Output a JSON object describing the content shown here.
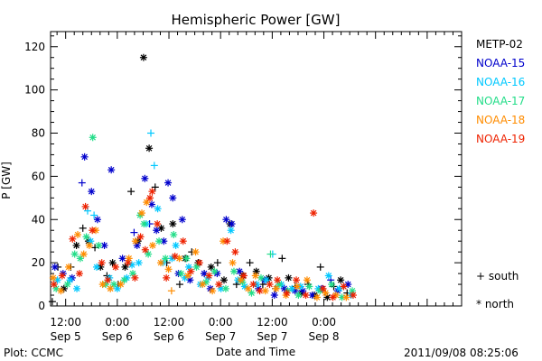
{
  "chart_data": {
    "type": "scatter",
    "title": "Hemispheric Power [GW]",
    "ylabel": "P [GW]",
    "xlabel": "Date and Time",
    "x_unit": "hours since 2011-09-05 00:00 UT",
    "xlim": [
      8.5,
      104
    ],
    "ylim": [
      0,
      127
    ],
    "yticks": [
      0,
      20,
      40,
      60,
      80,
      100,
      120
    ],
    "xticks": [
      {
        "x": 12,
        "time": "12:00",
        "date": "Sep 5"
      },
      {
        "x": 24,
        "time": "0:00",
        "date": "Sep 6"
      },
      {
        "x": 36,
        "time": "12:00",
        "date": "Sep 6"
      },
      {
        "x": 48,
        "time": "0:00",
        "date": "Sep 7"
      },
      {
        "x": 60,
        "time": "12:00",
        "date": "Sep 7"
      },
      {
        "x": 72,
        "time": "0:00",
        "date": "Sep 8"
      }
    ],
    "grid": false,
    "legend_position": "right",
    "marker_key": {
      "south": "+",
      "north": "*"
    },
    "series": [
      {
        "name": "METP-02",
        "color": "#000000",
        "points": [
          [
            8.9,
            2,
            "+"
          ],
          [
            10.2,
            18,
            "+"
          ],
          [
            11.6,
            8,
            "*"
          ],
          [
            13.2,
            18,
            "+"
          ],
          [
            14.5,
            28,
            "*"
          ],
          [
            16,
            36,
            "+"
          ],
          [
            17.3,
            30,
            "*"
          ],
          [
            18.8,
            27,
            "+"
          ],
          [
            20.1,
            18,
            "*"
          ],
          [
            21.6,
            14,
            "+"
          ],
          [
            22.9,
            20,
            "*"
          ],
          [
            24.2,
            10,
            "+"
          ],
          [
            25.8,
            18,
            "*"
          ],
          [
            27.2,
            53,
            "+"
          ],
          [
            28.8,
            30,
            "*"
          ],
          [
            30.1,
            115,
            "*"
          ],
          [
            31.4,
            73,
            "*"
          ],
          [
            32.8,
            55,
            "+"
          ],
          [
            34.2,
            36,
            "*"
          ],
          [
            35.5,
            20,
            "+"
          ],
          [
            36.9,
            38,
            "*"
          ],
          [
            38.5,
            10,
            "+"
          ],
          [
            39.8,
            22,
            "*"
          ],
          [
            41.3,
            25,
            "+"
          ],
          [
            42.8,
            20,
            "*"
          ],
          [
            44.2,
            15,
            "+"
          ],
          [
            45.8,
            18,
            "*"
          ],
          [
            47.3,
            20,
            "+"
          ],
          [
            48.8,
            12,
            "*"
          ],
          [
            50.2,
            38,
            "*"
          ],
          [
            51.7,
            10,
            "+"
          ],
          [
            53.2,
            14,
            "*"
          ],
          [
            54.8,
            20,
            "+"
          ],
          [
            56.3,
            16,
            "*"
          ],
          [
            57.8,
            10,
            "+"
          ],
          [
            59.2,
            13,
            "*"
          ],
          [
            60.8,
            8,
            "+"
          ],
          [
            62.3,
            22,
            "+"
          ],
          [
            63.8,
            13,
            "*"
          ],
          [
            65.3,
            9,
            "+"
          ],
          [
            66.8,
            6,
            "*"
          ],
          [
            68.3,
            10,
            "+"
          ],
          [
            69.8,
            5,
            "*"
          ],
          [
            71.2,
            18,
            "+"
          ],
          [
            72.8,
            4,
            "*"
          ],
          [
            74.3,
            9,
            "+"
          ],
          [
            75.9,
            12,
            "*"
          ],
          [
            77.4,
            6,
            "+"
          ]
        ]
      },
      {
        "name": "NOAA-15",
        "color": "#0000cc",
        "points": [
          [
            9.5,
            18,
            "*"
          ],
          [
            11.4,
            15,
            "*"
          ],
          [
            13.5,
            13,
            "*"
          ],
          [
            15.8,
            57,
            "+"
          ],
          [
            16.4,
            69,
            "*"
          ],
          [
            18,
            53,
            "*"
          ],
          [
            19.4,
            40,
            "*"
          ],
          [
            21,
            28,
            "*"
          ],
          [
            22.6,
            63,
            "*"
          ],
          [
            25.2,
            22,
            "*"
          ],
          [
            27.9,
            34,
            "+"
          ],
          [
            28.6,
            28,
            "*"
          ],
          [
            30.4,
            59,
            "*"
          ],
          [
            31.5,
            38,
            "+"
          ],
          [
            32,
            47,
            "*"
          ],
          [
            33.1,
            35,
            "*"
          ],
          [
            34.8,
            30,
            "*"
          ],
          [
            35.8,
            57,
            "*"
          ],
          [
            36.9,
            50,
            "*"
          ],
          [
            38.2,
            15,
            "*"
          ],
          [
            39.1,
            40,
            "*"
          ],
          [
            40.9,
            12,
            "*"
          ],
          [
            44.2,
            15,
            "*"
          ],
          [
            45.6,
            8,
            "*"
          ],
          [
            47.2,
            15,
            "*"
          ],
          [
            49.3,
            40,
            "*"
          ],
          [
            50.6,
            38,
            "*"
          ],
          [
            52.4,
            16,
            "*"
          ],
          [
            56.8,
            8,
            "*"
          ],
          [
            58.2,
            12,
            "*"
          ],
          [
            60.5,
            5,
            "*"
          ],
          [
            62.8,
            8,
            "*"
          ],
          [
            65.3,
            7,
            "*"
          ],
          [
            67.1,
            7,
            "*"
          ],
          [
            69.3,
            5,
            "*"
          ],
          [
            71.5,
            8,
            "*"
          ],
          [
            73.6,
            12,
            "+"
          ],
          [
            75.2,
            7,
            "*"
          ],
          [
            77.6,
            10,
            "*"
          ]
        ]
      },
      {
        "name": "NOAA-16",
        "color": "#00c8ff",
        "points": [
          [
            10.1,
            12,
            "*"
          ],
          [
            13,
            12,
            "*"
          ],
          [
            14.6,
            8,
            "*"
          ],
          [
            17.1,
            44,
            "+"
          ],
          [
            17.8,
            30,
            "*"
          ],
          [
            18.6,
            42,
            "+"
          ],
          [
            19.2,
            18,
            "*"
          ],
          [
            22.2,
            13,
            "*"
          ],
          [
            24,
            8,
            "*"
          ],
          [
            26.2,
            13,
            "*"
          ],
          [
            27.4,
            19,
            "*"
          ],
          [
            29,
            20,
            "*"
          ],
          [
            30.7,
            38,
            "*"
          ],
          [
            31.8,
            80,
            "+"
          ],
          [
            32.6,
            65,
            "+"
          ],
          [
            33.4,
            45,
            "*"
          ],
          [
            34.6,
            20,
            "*"
          ],
          [
            36.7,
            22,
            "*"
          ],
          [
            37.6,
            28,
            "*"
          ],
          [
            39.7,
            13,
            "*"
          ],
          [
            40.6,
            18,
            "*"
          ],
          [
            43.3,
            10,
            "*"
          ],
          [
            45.1,
            13,
            "*"
          ],
          [
            48.1,
            8,
            "*"
          ],
          [
            50.4,
            35,
            "*"
          ],
          [
            52,
            12,
            "*"
          ],
          [
            53.6,
            9,
            "*"
          ],
          [
            56.4,
            10,
            "*"
          ],
          [
            58.6,
            12,
            "*"
          ],
          [
            60.1,
            24,
            "+"
          ],
          [
            62.1,
            10,
            "*"
          ],
          [
            64.6,
            8,
            "*"
          ],
          [
            66.6,
            9,
            "*"
          ],
          [
            70.7,
            8,
            "*"
          ],
          [
            73.1,
            14,
            "*"
          ],
          [
            75.6,
            8,
            "*"
          ],
          [
            78.3,
            5,
            "*"
          ]
        ]
      },
      {
        "name": "NOAA-17",
        "color": "#22dd88",
        "points": [
          [
            9.8,
            8,
            "*"
          ],
          [
            12.4,
            10,
            "*"
          ],
          [
            14.1,
            24,
            "*"
          ],
          [
            15.4,
            22,
            "*"
          ],
          [
            16.8,
            32,
            "*"
          ],
          [
            18.3,
            78,
            "*"
          ],
          [
            19.7,
            28,
            "*"
          ],
          [
            21.3,
            10,
            "*"
          ],
          [
            23.2,
            10,
            "*"
          ],
          [
            25.6,
            12,
            "*"
          ],
          [
            27.6,
            15,
            "*"
          ],
          [
            29.3,
            42,
            "*"
          ],
          [
            30.2,
            38,
            "*"
          ],
          [
            31.2,
            24,
            "*"
          ],
          [
            33.7,
            30,
            "*"
          ],
          [
            35.2,
            22,
            "*"
          ],
          [
            37.1,
            33,
            "*"
          ],
          [
            38.8,
            15,
            "*"
          ],
          [
            40.1,
            22,
            "*"
          ],
          [
            42.4,
            18,
            "*"
          ],
          [
            44.6,
            11,
            "*"
          ],
          [
            46.6,
            16,
            "*"
          ],
          [
            49.2,
            8,
            "*"
          ],
          [
            51.1,
            16,
            "*"
          ],
          [
            53.1,
            11,
            "*"
          ],
          [
            55.2,
            6,
            "*"
          ],
          [
            57.4,
            13,
            "*"
          ],
          [
            59.6,
            24,
            "+"
          ],
          [
            61.6,
            10,
            "*"
          ],
          [
            63.6,
            7,
            "*"
          ],
          [
            66.1,
            5,
            "*"
          ],
          [
            68.6,
            9,
            "*"
          ],
          [
            71.1,
            7,
            "*"
          ],
          [
            73.8,
            10,
            "*"
          ],
          [
            76.2,
            4,
            "*"
          ],
          [
            78.6,
            7,
            "*"
          ]
        ]
      },
      {
        "name": "NOAA-18",
        "color": "#ff8c00",
        "points": [
          [
            9.1,
            13,
            "*"
          ],
          [
            10.9,
            7,
            "*"
          ],
          [
            12.7,
            18,
            "*"
          ],
          [
            14.8,
            33,
            "*"
          ],
          [
            16.2,
            24,
            "*"
          ],
          [
            17.5,
            28,
            "*"
          ],
          [
            19,
            35,
            "*"
          ],
          [
            20.6,
            10,
            "*"
          ],
          [
            22.4,
            8,
            "*"
          ],
          [
            24.8,
            10,
            "*"
          ],
          [
            26.7,
            22,
            "*"
          ],
          [
            28.2,
            30,
            "*"
          ],
          [
            29.7,
            43,
            "*"
          ],
          [
            30.8,
            48,
            "*"
          ],
          [
            32.2,
            28,
            "*"
          ],
          [
            34.1,
            20,
            "*"
          ],
          [
            35.9,
            17,
            "*"
          ],
          [
            36.6,
            7,
            "+"
          ],
          [
            38.4,
            22,
            "*"
          ],
          [
            40.4,
            14,
            "*"
          ],
          [
            42.2,
            25,
            "*"
          ],
          [
            43.8,
            10,
            "*"
          ],
          [
            46.1,
            7,
            "*"
          ],
          [
            48.6,
            30,
            "*"
          ],
          [
            50.8,
            20,
            "*"
          ],
          [
            52.7,
            12,
            "*"
          ],
          [
            54.4,
            8,
            "*"
          ],
          [
            56.1,
            14,
            "*"
          ],
          [
            58.4,
            7,
            "*"
          ],
          [
            60.9,
            8,
            "*"
          ],
          [
            63.2,
            5,
            "*"
          ],
          [
            65.8,
            9,
            "*"
          ],
          [
            68.1,
            12,
            "*"
          ],
          [
            70.4,
            4,
            "*"
          ],
          [
            72.4,
            6,
            "*"
          ],
          [
            74.8,
            5,
            "*"
          ],
          [
            77.2,
            4,
            "*"
          ]
        ]
      },
      {
        "name": "NOAA-19",
        "color": "#ee2200",
        "points": [
          [
            9.3,
            10,
            "*"
          ],
          [
            11.2,
            14,
            "*"
          ],
          [
            13.6,
            31,
            "*"
          ],
          [
            15.2,
            15,
            "*"
          ],
          [
            16.6,
            46,
            "*"
          ],
          [
            18.2,
            35,
            "*"
          ],
          [
            20.4,
            20,
            "*"
          ],
          [
            21.8,
            12,
            "*"
          ],
          [
            23.6,
            18,
            "*"
          ],
          [
            26.5,
            20,
            "*"
          ],
          [
            28.1,
            13,
            "*"
          ],
          [
            29.4,
            32,
            "*"
          ],
          [
            30.5,
            26,
            "*"
          ],
          [
            31.6,
            50,
            "*"
          ],
          [
            32.1,
            53,
            "*"
          ],
          [
            33.3,
            38,
            "*"
          ],
          [
            35.4,
            13,
            "*"
          ],
          [
            37.4,
            23,
            "*"
          ],
          [
            39.3,
            30,
            "*"
          ],
          [
            41.1,
            16,
            "*"
          ],
          [
            43.1,
            20,
            "*"
          ],
          [
            45.3,
            14,
            "*"
          ],
          [
            47.6,
            10,
            "*"
          ],
          [
            49.5,
            30,
            "*"
          ],
          [
            51.4,
            25,
            "*"
          ],
          [
            53.4,
            14,
            "*"
          ],
          [
            55.6,
            10,
            "*"
          ],
          [
            57.1,
            7,
            "*"
          ],
          [
            59.4,
            10,
            "*"
          ],
          [
            61.2,
            12,
            "*"
          ],
          [
            63.4,
            6,
            "*"
          ],
          [
            65.6,
            12,
            "*"
          ],
          [
            67.8,
            5,
            "*"
          ],
          [
            69.6,
            43,
            "*"
          ],
          [
            71.8,
            8,
            "*"
          ],
          [
            74.1,
            4,
            "*"
          ],
          [
            76.6,
            9,
            "*"
          ],
          [
            78.8,
            5,
            "*"
          ]
        ]
      }
    ]
  },
  "legend": [
    {
      "name": "METP-02",
      "color": "#000000"
    },
    {
      "name": "NOAA-15",
      "color": "#0000cc"
    },
    {
      "name": "NOAA-16",
      "color": "#00c8ff"
    },
    {
      "name": "NOAA-17",
      "color": "#22dd88"
    },
    {
      "name": "NOAA-18",
      "color": "#ff8c00"
    },
    {
      "name": "NOAA-19",
      "color": "#ee2200"
    }
  ],
  "marker_legend": {
    "south": "+ south",
    "north": "* north"
  },
  "footer": {
    "plot_credit": "Plot: CCMC",
    "timestamp": "2011/09/08 08:25:06"
  }
}
